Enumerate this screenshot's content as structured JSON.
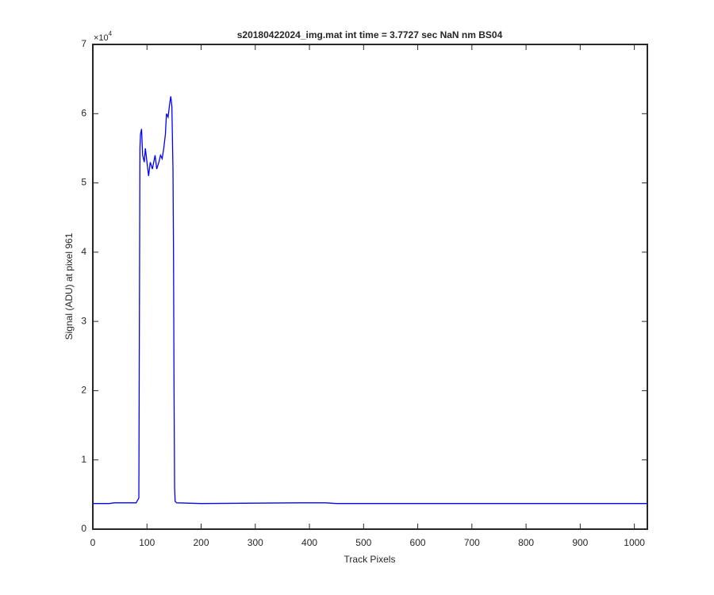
{
  "chart_data": {
    "type": "line",
    "title": "s20180422024_img.mat int time = 3.7727 sec  NaN nm BS04",
    "x_label": "Track Pixels",
    "y_label": "Signal (ADU) at pixel 961",
    "y_exponent_base": "×10",
    "y_exponent_power": "4",
    "color": "#0000ff",
    "x": [
      0,
      30,
      40,
      80,
      85,
      86,
      87,
      88,
      90,
      92,
      95,
      97,
      100,
      103,
      106,
      110,
      115,
      118,
      122,
      125,
      128,
      131,
      134,
      136,
      139,
      142,
      144,
      146,
      148,
      149,
      150,
      151,
      152,
      155,
      200,
      380,
      430,
      450,
      1024
    ],
    "values": [
      3700,
      3700,
      3800,
      3800,
      4500,
      30000,
      55000,
      57000,
      57800,
      54000,
      53000,
      55000,
      53000,
      51000,
      53000,
      52000,
      54000,
      52000,
      53000,
      54000,
      53500,
      55000,
      57000,
      60000,
      59500,
      61500,
      62500,
      61000,
      52000,
      40000,
      20000,
      6000,
      4000,
      3800,
      3700,
      3800,
      3800,
      3700,
      3700
    ],
    "xlim": [
      0,
      1024
    ],
    "xticks": [
      0,
      100,
      200,
      300,
      400,
      500,
      600,
      700,
      800,
      900,
      1000
    ],
    "ylim": [
      0,
      70000
    ],
    "yticks": [
      {
        "value": 0,
        "label": "0"
      },
      {
        "value": 10000,
        "label": "1"
      },
      {
        "value": 20000,
        "label": "2"
      },
      {
        "value": 30000,
        "label": "3"
      },
      {
        "value": 40000,
        "label": "4"
      },
      {
        "value": 50000,
        "label": "5"
      },
      {
        "value": 60000,
        "label": "6"
      },
      {
        "value": 70000,
        "label": "7"
      }
    ],
    "grid": false
  }
}
